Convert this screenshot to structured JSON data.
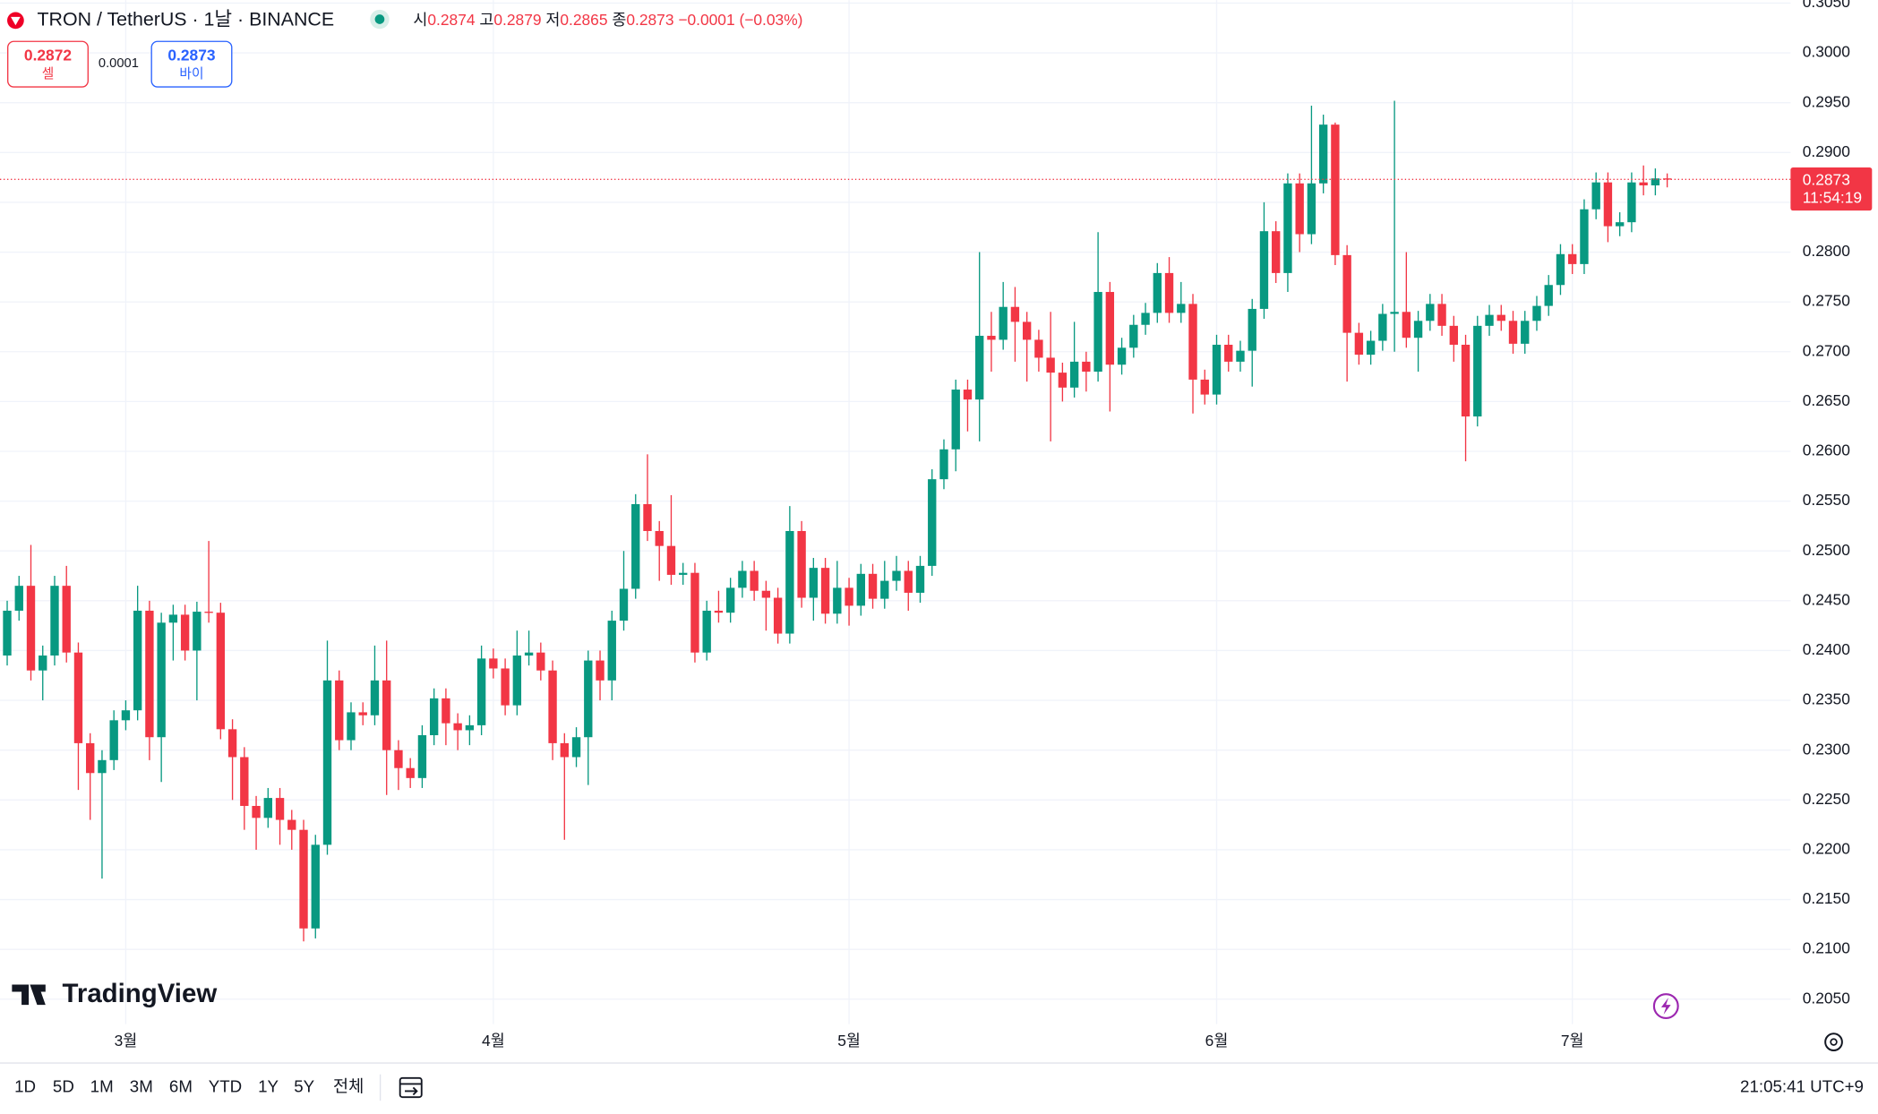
{
  "header": {
    "symbol_title": "TRON / TetherUS · 1날 · BINANCE",
    "ohlc_labels": [
      "시",
      "고",
      "저",
      "종"
    ],
    "change": "−0.0001 (−0.03%)"
  },
  "trade": {
    "sell_price": 0.2872,
    "sell_label": "셀",
    "spread": 0.0001,
    "buy_price": 0.2873,
    "buy_label": "바이"
  },
  "logo": "TradingView",
  "toolbar": {
    "ranges": [
      "1D",
      "5D",
      "1M",
      "3M",
      "6M",
      "YTD",
      "1Y",
      "5Y",
      "전체"
    ],
    "clock": "21:05:41 UTC+9"
  },
  "chart_data": {
    "type": "candlestick",
    "up_color": "#089981",
    "down_color": "#f23645",
    "grid": true,
    "last_price": 0.2873,
    "countdown": "11:54:19",
    "ylim": [
      0.2025,
      0.3053
    ],
    "yticks": [
      {
        "value": 0.205,
        "label": "0.2050"
      },
      {
        "value": 0.21,
        "label": "0.2100"
      },
      {
        "value": 0.215,
        "label": "0.2150"
      },
      {
        "value": 0.22,
        "label": "0.2200"
      },
      {
        "value": 0.225,
        "label": "0.2250"
      },
      {
        "value": 0.23,
        "label": "0.2300"
      },
      {
        "value": 0.235,
        "label": "0.2350"
      },
      {
        "value": 0.24,
        "label": "0.2400"
      },
      {
        "value": 0.245,
        "label": "0.2450"
      },
      {
        "value": 0.25,
        "label": "0.2500"
      },
      {
        "value": 0.255,
        "label": "0.2550"
      },
      {
        "value": 0.26,
        "label": "0.2600"
      },
      {
        "value": 0.265,
        "label": "0.2650"
      },
      {
        "value": 0.27,
        "label": "0.2700"
      },
      {
        "value": 0.275,
        "label": "0.2750"
      },
      {
        "value": 0.28,
        "label": "0.2800"
      },
      {
        "value": 0.285,
        "label": "0.2850"
      },
      {
        "value": 0.29,
        "label": "0.2900"
      },
      {
        "value": 0.295,
        "label": "0.2950"
      },
      {
        "value": 0.3,
        "label": "0.3000"
      },
      {
        "value": 0.305,
        "label": "0.3050"
      }
    ],
    "categories": [
      null,
      null,
      null,
      null,
      null,
      null,
      null,
      null,
      null,
      null,
      "3월",
      null,
      null,
      null,
      null,
      null,
      null,
      null,
      null,
      null,
      null,
      null,
      null,
      null,
      null,
      null,
      null,
      null,
      null,
      null,
      null,
      null,
      null,
      null,
      null,
      null,
      null,
      null,
      null,
      null,
      null,
      "4월",
      null,
      null,
      null,
      null,
      null,
      null,
      null,
      null,
      null,
      null,
      null,
      null,
      null,
      null,
      null,
      null,
      null,
      null,
      null,
      null,
      null,
      null,
      null,
      null,
      null,
      null,
      null,
      null,
      null,
      "5월",
      null,
      null,
      null,
      null,
      null,
      null,
      null,
      null,
      null,
      null,
      null,
      null,
      null,
      null,
      null,
      null,
      null,
      null,
      null,
      null,
      null,
      null,
      null,
      null,
      null,
      null,
      null,
      null,
      null,
      null,
      "6월",
      null,
      null,
      null,
      null,
      null,
      null,
      null,
      null,
      null,
      null,
      null,
      null,
      null,
      null,
      null,
      null,
      null,
      null,
      null,
      null,
      null,
      null,
      null,
      null,
      null,
      null,
      null,
      null,
      null,
      "7월",
      null,
      null,
      null,
      null,
      null,
      null,
      null,
      null
    ],
    "open": [
      0.2395,
      0.244,
      0.2465,
      0.238,
      0.2395,
      0.2465,
      0.2398,
      0.2307,
      0.2277,
      0.229,
      0.233,
      0.234,
      0.244,
      0.2313,
      0.2428,
      0.2436,
      0.24,
      0.2439,
      0.2438,
      0.2321,
      0.2293,
      0.2244,
      0.2232,
      0.2252,
      0.223,
      0.222,
      0.2121,
      0.2205,
      0.237,
      0.231,
      0.2338,
      0.2335,
      0.237,
      0.23,
      0.2282,
      0.2272,
      0.2315,
      0.2352,
      0.2327,
      0.232,
      0.2325,
      0.2392,
      0.2382,
      0.2345,
      0.2395,
      0.2398,
      0.238,
      0.2307,
      0.2293,
      0.2313,
      0.239,
      0.237,
      0.243,
      0.2462,
      0.2547,
      0.252,
      0.2505,
      0.2476,
      0.2478,
      0.2398,
      0.244,
      0.2438,
      0.2463,
      0.248,
      0.246,
      0.2453,
      0.2417,
      0.252,
      0.2453,
      0.2483,
      0.2437,
      0.2463,
      0.2445,
      0.2477,
      0.2452,
      0.247,
      0.248,
      0.2458,
      0.2485,
      0.2572,
      0.2602,
      0.2662,
      0.2652,
      0.2716,
      0.2712,
      0.2745,
      0.273,
      0.2712,
      0.2694,
      0.2679,
      0.2664,
      0.269,
      0.268,
      0.276,
      0.2687,
      0.2704,
      0.2727,
      0.2739,
      0.2779,
      0.2739,
      0.2748,
      0.2672,
      0.2657,
      0.2707,
      0.269,
      0.2701,
      0.2743,
      0.2821,
      0.2779,
      0.2869,
      0.2818,
      0.2869,
      0.2928,
      0.2797,
      0.2719,
      0.2697,
      0.2711,
      0.2738,
      0.274,
      0.2714,
      0.2731,
      0.2748,
      0.2726,
      0.2707,
      0.2635,
      0.2726,
      0.2737,
      0.2731,
      0.2708,
      0.2731,
      0.2746,
      0.2767,
      0.2798,
      0.2788,
      0.2843,
      0.287,
      0.2826,
      0.283,
      0.287,
      0.2867,
      0.2874
    ],
    "high": [
      0.245,
      0.2475,
      0.2506,
      0.2405,
      0.2475,
      0.2485,
      0.2408,
      0.2317,
      0.23,
      0.234,
      0.235,
      0.2465,
      0.245,
      0.2438,
      0.2446,
      0.2446,
      0.2449,
      0.251,
      0.2448,
      0.2331,
      0.2303,
      0.2254,
      0.2262,
      0.2262,
      0.224,
      0.223,
      0.2215,
      0.241,
      0.238,
      0.2348,
      0.2348,
      0.2405,
      0.241,
      0.231,
      0.2292,
      0.2325,
      0.2362,
      0.2362,
      0.2337,
      0.2335,
      0.2405,
      0.2402,
      0.2392,
      0.242,
      0.242,
      0.2408,
      0.239,
      0.2317,
      0.2323,
      0.24,
      0.24,
      0.244,
      0.25,
      0.2557,
      0.2597,
      0.253,
      0.2556,
      0.2488,
      0.2488,
      0.245,
      0.246,
      0.2473,
      0.249,
      0.249,
      0.247,
      0.2463,
      0.2545,
      0.253,
      0.2493,
      0.2493,
      0.249,
      0.2473,
      0.2487,
      0.2487,
      0.249,
      0.2495,
      0.249,
      0.2495,
      0.2582,
      0.2612,
      0.2672,
      0.2672,
      0.28,
      0.274,
      0.277,
      0.2765,
      0.274,
      0.2722,
      0.274,
      0.2689,
      0.273,
      0.27,
      0.282,
      0.277,
      0.2714,
      0.2737,
      0.2749,
      0.2789,
      0.2795,
      0.277,
      0.2758,
      0.2682,
      0.2717,
      0.2717,
      0.2711,
      0.2753,
      0.285,
      0.2831,
      0.2879,
      0.2879,
      0.2947,
      0.2938,
      0.293,
      0.2807,
      0.2729,
      0.2721,
      0.2748,
      0.2952,
      0.28,
      0.2741,
      0.2758,
      0.2758,
      0.2736,
      0.2717,
      0.2736,
      0.2747,
      0.2747,
      0.2741,
      0.2741,
      0.2756,
      0.2777,
      0.2808,
      0.2808,
      0.2853,
      0.288,
      0.288,
      0.284,
      0.288,
      0.2887,
      0.2884,
      0.2879
    ],
    "low": [
      0.2385,
      0.243,
      0.237,
      0.235,
      0.2385,
      0.2388,
      0.226,
      0.223,
      0.2171,
      0.228,
      0.232,
      0.233,
      0.229,
      0.2268,
      0.239,
      0.239,
      0.235,
      0.2428,
      0.2311,
      0.225,
      0.222,
      0.22,
      0.2222,
      0.2205,
      0.22,
      0.2108,
      0.2111,
      0.2195,
      0.23,
      0.23,
      0.2325,
      0.2325,
      0.2255,
      0.226,
      0.2262,
      0.2262,
      0.2305,
      0.2305,
      0.23,
      0.2305,
      0.2315,
      0.2372,
      0.2335,
      0.2335,
      0.2385,
      0.237,
      0.229,
      0.221,
      0.2283,
      0.2265,
      0.235,
      0.235,
      0.242,
      0.2452,
      0.251,
      0.247,
      0.2466,
      0.2466,
      0.2388,
      0.239,
      0.2428,
      0.2428,
      0.2453,
      0.245,
      0.242,
      0.2407,
      0.2407,
      0.2443,
      0.243,
      0.2427,
      0.2427,
      0.2425,
      0.2435,
      0.2442,
      0.2442,
      0.246,
      0.244,
      0.2448,
      0.2475,
      0.2562,
      0.258,
      0.262,
      0.261,
      0.268,
      0.2702,
      0.269,
      0.267,
      0.268,
      0.261,
      0.265,
      0.2654,
      0.266,
      0.267,
      0.264,
      0.2677,
      0.2694,
      0.2717,
      0.2729,
      0.2729,
      0.2729,
      0.2638,
      0.2647,
      0.2647,
      0.268,
      0.268,
      0.2665,
      0.2733,
      0.2769,
      0.276,
      0.28,
      0.2808,
      0.2859,
      0.2787,
      0.267,
      0.2687,
      0.2687,
      0.2701,
      0.27,
      0.2704,
      0.268,
      0.2721,
      0.2716,
      0.269,
      0.259,
      0.2625,
      0.2716,
      0.2721,
      0.2698,
      0.2698,
      0.2721,
      0.2736,
      0.2757,
      0.2778,
      0.2778,
      0.2833,
      0.281,
      0.2816,
      0.282,
      0.2857,
      0.2857,
      0.2865
    ],
    "close": [
      0.244,
      0.2465,
      0.238,
      0.2395,
      0.2465,
      0.2398,
      0.2307,
      0.2277,
      0.229,
      0.233,
      0.234,
      0.244,
      0.2313,
      0.2428,
      0.2436,
      0.24,
      0.2439,
      0.2438,
      0.2321,
      0.2293,
      0.2244,
      0.2232,
      0.2252,
      0.223,
      0.222,
      0.2121,
      0.2205,
      0.237,
      0.231,
      0.2338,
      0.2335,
      0.237,
      0.23,
      0.2282,
      0.2272,
      0.2315,
      0.2352,
      0.2327,
      0.232,
      0.2325,
      0.2392,
      0.2382,
      0.2345,
      0.2395,
      0.2398,
      0.238,
      0.2307,
      0.2293,
      0.2313,
      0.239,
      0.237,
      0.243,
      0.2462,
      0.2547,
      0.252,
      0.2505,
      0.2476,
      0.2478,
      0.2398,
      0.244,
      0.2438,
      0.2463,
      0.248,
      0.246,
      0.2453,
      0.2417,
      0.252,
      0.2453,
      0.2483,
      0.2437,
      0.2463,
      0.2445,
      0.2477,
      0.2452,
      0.247,
      0.248,
      0.2458,
      0.2485,
      0.2572,
      0.2602,
      0.2662,
      0.2652,
      0.2716,
      0.2712,
      0.2745,
      0.273,
      0.2712,
      0.2694,
      0.2679,
      0.2664,
      0.269,
      0.268,
      0.276,
      0.2687,
      0.2704,
      0.2727,
      0.2739,
      0.2779,
      0.2739,
      0.2748,
      0.2672,
      0.2657,
      0.2707,
      0.269,
      0.2701,
      0.2743,
      0.2821,
      0.2779,
      0.2869,
      0.2818,
      0.2869,
      0.2928,
      0.2797,
      0.2719,
      0.2697,
      0.2711,
      0.2738,
      0.274,
      0.2714,
      0.2731,
      0.2748,
      0.2726,
      0.2707,
      0.2635,
      0.2726,
      0.2737,
      0.2731,
      0.2708,
      0.2731,
      0.2746,
      0.2767,
      0.2798,
      0.2788,
      0.2843,
      0.287,
      0.2826,
      0.283,
      0.287,
      0.2867,
      0.2874,
      0.2873
    ]
  }
}
